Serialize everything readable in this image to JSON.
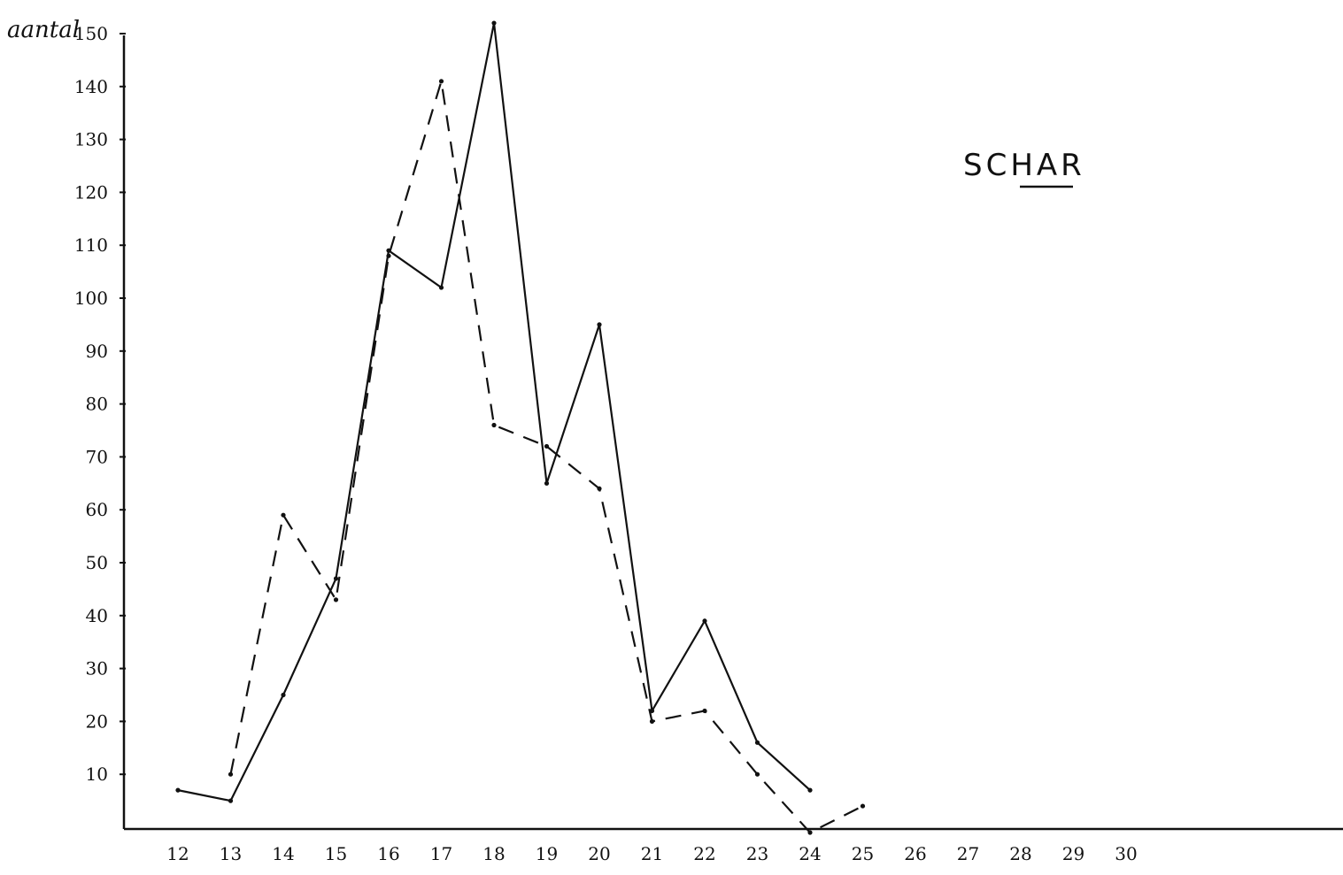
{
  "chart_data": {
    "type": "line",
    "title": "SCHAR",
    "ylabel": "aantal",
    "xlabel": "",
    "x": [
      12,
      13,
      14,
      15,
      16,
      17,
      18,
      19,
      20,
      21,
      22,
      23,
      24,
      25,
      26,
      27,
      28,
      29,
      30
    ],
    "xlim": [
      11,
      34
    ],
    "ylim": [
      0,
      150
    ],
    "yticks": [
      10,
      20,
      30,
      40,
      50,
      60,
      70,
      80,
      90,
      100,
      110,
      120,
      130,
      140,
      150
    ],
    "xtick_labels": [
      "12",
      "13",
      "14",
      "15",
      "16",
      "17",
      "18",
      "19",
      "20",
      "21",
      "22",
      "23",
      "24",
      "25",
      "26",
      "27",
      "28",
      "29",
      "30"
    ],
    "ytick_labels": [
      "10",
      "20",
      "30",
      "40",
      "50",
      "60",
      "70",
      "80",
      "90",
      "100",
      "110",
      "120",
      "130",
      "140",
      "150"
    ],
    "grid": false,
    "series": [
      {
        "style": "solid",
        "x": [
          12,
          13,
          14,
          15,
          16,
          17,
          18,
          19,
          20,
          21,
          22,
          23,
          24
        ],
        "values": [
          7,
          5,
          25,
          47,
          109,
          102,
          152,
          65,
          95,
          22,
          39,
          16,
          7
        ]
      },
      {
        "style": "dashed",
        "x": [
          13,
          14,
          15,
          16,
          17,
          18,
          19,
          20,
          21,
          22,
          23,
          24,
          25
        ],
        "values": [
          10,
          59,
          43,
          108,
          141,
          76,
          72,
          64,
          20,
          22,
          10,
          -1,
          4
        ]
      }
    ]
  }
}
